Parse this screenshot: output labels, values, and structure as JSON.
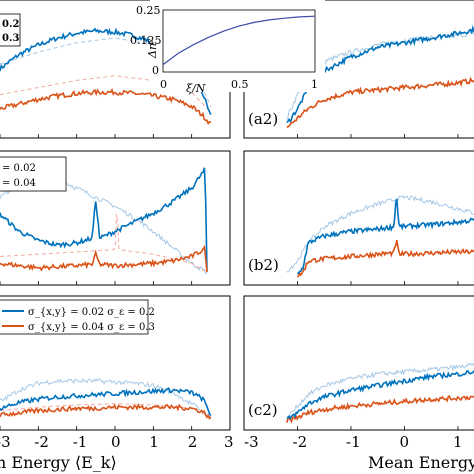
{
  "chart_data": [
    {
      "type": "line",
      "panel_label": "(a2)",
      "legend_lines": [
        "0.2",
        "0.3"
      ],
      "series": [
        {
          "color": "#0072BD",
          "style": "noisy",
          "x": [
            -3,
            -2.5,
            -2,
            -1.5,
            -1,
            -0.5,
            0,
            0.5,
            1,
            1.5,
            2,
            2.3,
            2.5
          ],
          "y": [
            0.52,
            0.64,
            0.72,
            0.78,
            0.82,
            0.84,
            0.83,
            0.8,
            0.74,
            0.64,
            0.48,
            0.3,
            0.12
          ]
        },
        {
          "color": "#D95319",
          "style": "noisy",
          "x": [
            -3,
            -2.5,
            -2,
            -1.5,
            -1,
            -0.5,
            0,
            0.5,
            1,
            1.5,
            2,
            2.3,
            2.5
          ],
          "y": [
            0.18,
            0.22,
            0.26,
            0.29,
            0.31,
            0.32,
            0.32,
            0.31,
            0.29,
            0.26,
            0.2,
            0.12,
            0.05
          ]
        },
        {
          "color": "#F4A8A0",
          "style": "dashed",
          "x": [
            -3,
            -2,
            -1,
            0,
            1,
            2,
            2.5
          ],
          "y": [
            0.3,
            0.36,
            0.42,
            0.46,
            0.42,
            0.32,
            0.15
          ]
        },
        {
          "color": "#A6C8E6",
          "style": "dashed",
          "x": [
            -3,
            -2,
            -1,
            0,
            1,
            2,
            2.5
          ],
          "y": [
            0.56,
            0.66,
            0.74,
            0.78,
            0.72,
            0.56,
            0.2
          ]
        }
      ],
      "right": {
        "panel_label": "(a2)",
        "series": [
          {
            "color": "#0072BD",
            "x": [
              -2.2,
              -2.0,
              -1.8,
              -1.5,
              -1.0,
              -0.5,
              0,
              0.5,
              1.0,
              1.3
            ],
            "y": [
              0.05,
              0.18,
              0.35,
              0.5,
              0.62,
              0.7,
              0.74,
              0.78,
              0.82,
              0.85
            ]
          },
          {
            "color": "#D95319",
            "x": [
              -2.2,
              -2.0,
              -1.8,
              -1.5,
              -1.0,
              -0.5,
              0,
              0.5,
              1.0,
              1.3
            ],
            "y": [
              0.02,
              0.1,
              0.18,
              0.26,
              0.32,
              0.34,
              0.36,
              0.38,
              0.4,
              0.42
            ]
          },
          {
            "color": "#A6C8E6",
            "x": [
              -2.2,
              -2.0,
              -1.8,
              -1.5,
              -1.0,
              -0.5,
              0,
              0.5,
              1.0,
              1.3
            ],
            "y": [
              0.1,
              0.3,
              0.46,
              0.58,
              0.66,
              0.72,
              0.76,
              0.78,
              0.8,
              0.82
            ]
          }
        ]
      }
    },
    {
      "type": "line",
      "panel_label": "(b2)",
      "legend_lines": [
        "= 0.02",
        "= 0.04"
      ],
      "series": [
        {
          "color": "#0072BD",
          "style": "noisy",
          "x": [
            -3,
            -2.5,
            -2,
            -1.5,
            -1,
            -0.6,
            -0.5,
            -0.4,
            0,
            0.5,
            1,
            1.5,
            2,
            2.3,
            2.35,
            2.4
          ],
          "y": [
            0.55,
            0.4,
            0.32,
            0.28,
            0.3,
            0.34,
            0.68,
            0.34,
            0.4,
            0.48,
            0.56,
            0.66,
            0.78,
            0.92,
            0.95,
            0.05
          ]
        },
        {
          "color": "#D95319",
          "style": "noisy",
          "x": [
            -3,
            -2.5,
            -2,
            -1.5,
            -1,
            -0.6,
            -0.5,
            -0.4,
            0,
            0.5,
            1,
            1.5,
            2,
            2.3,
            2.35,
            2.4
          ],
          "y": [
            0.12,
            0.1,
            0.08,
            0.09,
            0.1,
            0.11,
            0.2,
            0.11,
            0.1,
            0.11,
            0.12,
            0.14,
            0.18,
            0.24,
            0.25,
            0.03
          ]
        },
        {
          "color": "#A6C8E6",
          "style": "noisy",
          "x": [
            -3,
            -2.5,
            -2,
            -1.5,
            -1,
            -0.5,
            0,
            0.5,
            1,
            1.5,
            2,
            2.4
          ],
          "y": [
            0.7,
            0.82,
            0.88,
            0.86,
            0.78,
            0.7,
            0.62,
            0.52,
            0.4,
            0.26,
            0.12,
            0.04
          ]
        },
        {
          "color": "#F4A8A0",
          "style": "dashed",
          "x": [
            -3,
            -2,
            -1,
            0,
            0.05,
            0.1,
            1,
            2,
            2.4
          ],
          "y": [
            0.18,
            0.2,
            0.22,
            0.24,
            0.66,
            0.24,
            0.2,
            0.12,
            0.04
          ]
        }
      ],
      "right": {
        "panel_label": "(b2)",
        "series": [
          {
            "color": "#0072BD",
            "x": [
              -2.0,
              -1.9,
              -1.8,
              -1.5,
              -1.0,
              -0.5,
              -0.2,
              -0.15,
              -0.1,
              0.5,
              1.0,
              1.3
            ],
            "y": [
              0.02,
              0.08,
              0.3,
              0.36,
              0.4,
              0.42,
              0.44,
              0.72,
              0.44,
              0.46,
              0.48,
              0.5
            ]
          },
          {
            "color": "#D95319",
            "x": [
              -2.0,
              -1.9,
              -1.8,
              -1.5,
              -1.0,
              -0.5,
              -0.2,
              -0.15,
              -0.1,
              0.5,
              1.0,
              1.3
            ],
            "y": [
              0.01,
              0.04,
              0.14,
              0.16,
              0.18,
              0.2,
              0.21,
              0.32,
              0.2,
              0.21,
              0.22,
              0.22
            ]
          },
          {
            "color": "#A6C8E6",
            "x": [
              -2.2,
              -2.0,
              -1.8,
              -1.5,
              -1.0,
              -0.5,
              0,
              0.5,
              1.0,
              1.3
            ],
            "y": [
              0.05,
              0.14,
              0.3,
              0.44,
              0.56,
              0.64,
              0.7,
              0.66,
              0.6,
              0.56
            ]
          }
        ]
      }
    },
    {
      "type": "line",
      "panel_label": "(c2)",
      "legend_lines": [
        "σ_{x,y} = 0.02  σ_ε = 0.2",
        "σ_{x,y} = 0.04  σ_ε = 0.3"
      ],
      "series": [
        {
          "color": "#0072BD",
          "style": "noisy",
          "x": [
            -3,
            -2.5,
            -2,
            -1.5,
            -1,
            -0.5,
            0,
            0.5,
            1,
            1.5,
            2,
            2.3,
            2.5
          ],
          "y": [
            0.12,
            0.17,
            0.2,
            0.22,
            0.23,
            0.24,
            0.25,
            0.26,
            0.27,
            0.28,
            0.26,
            0.2,
            0.06
          ]
        },
        {
          "color": "#D95319",
          "style": "noisy",
          "x": [
            -3,
            -2.5,
            -2,
            -1.5,
            -1,
            -0.5,
            0,
            0.5,
            1,
            1.5,
            2,
            2.3,
            2.5
          ],
          "y": [
            0.06,
            0.08,
            0.1,
            0.11,
            0.12,
            0.12,
            0.13,
            0.13,
            0.13,
            0.13,
            0.12,
            0.09,
            0.03
          ]
        },
        {
          "color": "#A6C8E6",
          "style": "noisy",
          "x": [
            -3,
            -2.5,
            -2,
            -1.5,
            -1,
            -0.5,
            0,
            0.5,
            1,
            1.5,
            2,
            2.5
          ],
          "y": [
            0.18,
            0.28,
            0.34,
            0.36,
            0.36,
            0.36,
            0.35,
            0.34,
            0.32,
            0.26,
            0.16,
            0.04
          ]
        },
        {
          "color": "#F4A8A0",
          "style": "dashed",
          "x": [
            -3,
            -2,
            -1,
            0,
            1,
            2,
            2.5
          ],
          "y": [
            0.1,
            0.13,
            0.15,
            0.16,
            0.15,
            0.12,
            0.04
          ]
        }
      ],
      "right": {
        "panel_label": "(c2)",
        "series": [
          {
            "color": "#0072BD",
            "x": [
              -2.2,
              -2.0,
              -1.8,
              -1.5,
              -1.0,
              -0.5,
              0,
              0.5,
              1.0,
              1.3
            ],
            "y": [
              0.02,
              0.08,
              0.16,
              0.22,
              0.28,
              0.32,
              0.36,
              0.4,
              0.42,
              0.44
            ]
          },
          {
            "color": "#D95319",
            "x": [
              -2.2,
              -2.0,
              -1.8,
              -1.5,
              -1.0,
              -0.5,
              0,
              0.5,
              1.0,
              1.3
            ],
            "y": [
              0.01,
              0.04,
              0.08,
              0.11,
              0.14,
              0.16,
              0.18,
              0.2,
              0.21,
              0.22
            ]
          },
          {
            "color": "#A6C8E6",
            "x": [
              -2.2,
              -2.0,
              -1.8,
              -1.5,
              -1.0,
              -0.5,
              0,
              0.5,
              1.0,
              1.3
            ],
            "y": [
              0.04,
              0.14,
              0.24,
              0.32,
              0.38,
              0.42,
              0.44,
              0.46,
              0.48,
              0.5
            ]
          }
        ]
      }
    },
    {
      "type": "line",
      "role": "inset",
      "x": [
        0,
        0.1,
        0.2,
        0.3,
        0.4,
        0.5,
        0.6,
        0.7,
        0.8,
        0.9,
        1.0
      ],
      "y": [
        0.03,
        0.075,
        0.11,
        0.14,
        0.165,
        0.185,
        0.2,
        0.21,
        0.217,
        0.222,
        0.225
      ],
      "xlim": [
        0,
        1
      ],
      "ylim": [
        0,
        0.25
      ],
      "xticks": [
        "0",
        "0.5",
        "1"
      ],
      "yticks": [
        "0.25",
        "0.125",
        "0"
      ],
      "xlabel": "ξ/N",
      "ylabel": "Δn²",
      "color": "#3B4BA8"
    }
  ],
  "left_axis": {
    "xticks": [
      "-3",
      "-2",
      "-1",
      "0",
      "1",
      "2",
      "3"
    ],
    "xlabel_fragment": "n Energy ⟨E_k⟩"
  },
  "right_axis": {
    "xticks": [
      "-3",
      "-2",
      "-1",
      "0",
      "1"
    ],
    "xlabel_fragment": "Mean Energy"
  },
  "legend_top_fragment": [
    "0.2",
    "0.3"
  ]
}
